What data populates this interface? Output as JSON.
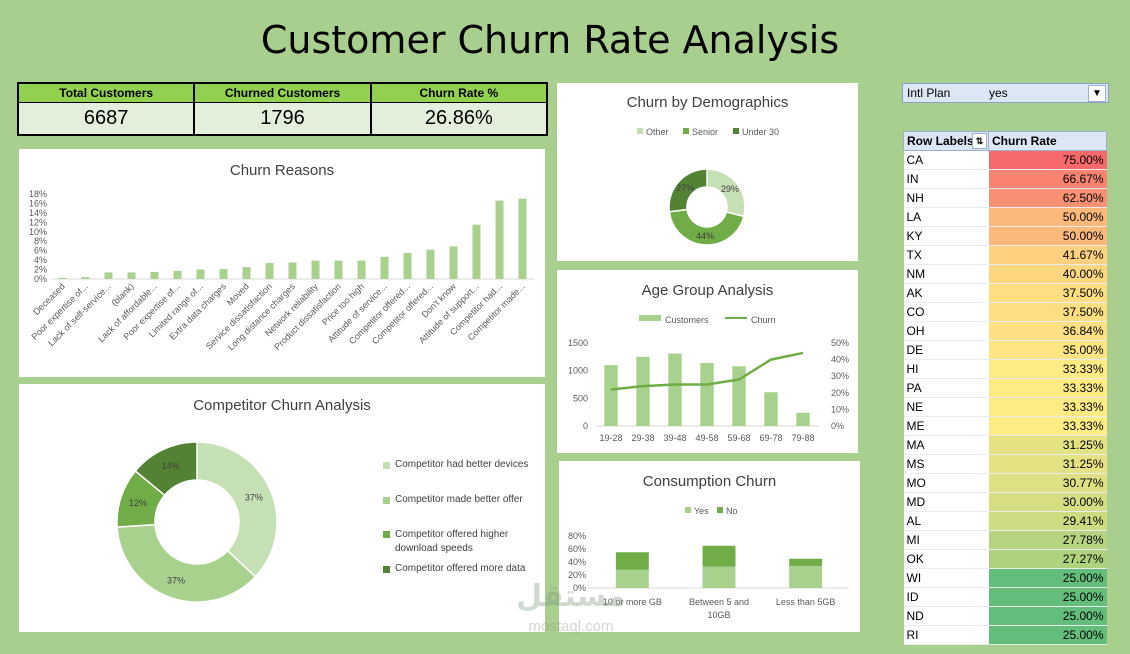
{
  "dashboard": {
    "title": "Customer Churn Rate Analysis"
  },
  "kpis": [
    {
      "label": "Total Customers",
      "value": "6687"
    },
    {
      "label": "Churned Customers",
      "value": "1796"
    },
    {
      "label": "Churn Rate %",
      "value": "26.86%"
    }
  ],
  "slicer": {
    "field": "Intl Plan",
    "value": "yes"
  },
  "pivot": {
    "header_label": "Row Labels",
    "header_value": "Churn Rate",
    "rows": [
      {
        "state": "CA",
        "rate": "75.00%",
        "color": "#f8696b"
      },
      {
        "state": "IN",
        "rate": "66.67%",
        "color": "#f98370"
      },
      {
        "state": "NH",
        "rate": "62.50%",
        "color": "#fa9073"
      },
      {
        "state": "LA",
        "rate": "50.00%",
        "color": "#fcb77a"
      },
      {
        "state": "KY",
        "rate": "50.00%",
        "color": "#fcb77a"
      },
      {
        "state": "TX",
        "rate": "41.67%",
        "color": "#fdd17f"
      },
      {
        "state": "NM",
        "rate": "40.00%",
        "color": "#fed680"
      },
      {
        "state": "AK",
        "rate": "37.50%",
        "color": "#fede81"
      },
      {
        "state": "CO",
        "rate": "37.50%",
        "color": "#fede81"
      },
      {
        "state": "OH",
        "rate": "36.84%",
        "color": "#fee082"
      },
      {
        "state": "DE",
        "rate": "35.00%",
        "color": "#ffe583"
      },
      {
        "state": "HI",
        "rate": "33.33%",
        "color": "#ffeb84"
      },
      {
        "state": "PA",
        "rate": "33.33%",
        "color": "#ffeb84"
      },
      {
        "state": "NE",
        "rate": "33.33%",
        "color": "#ffeb84"
      },
      {
        "state": "ME",
        "rate": "33.33%",
        "color": "#ffeb84"
      },
      {
        "state": "MA",
        "rate": "31.25%",
        "color": "#e5e283"
      },
      {
        "state": "MS",
        "rate": "31.25%",
        "color": "#e5e283"
      },
      {
        "state": "MO",
        "rate": "30.77%",
        "color": "#dfe083"
      },
      {
        "state": "MD",
        "rate": "30.00%",
        "color": "#d6dd82"
      },
      {
        "state": "AL",
        "rate": "29.41%",
        "color": "#cedb81"
      },
      {
        "state": "MI",
        "rate": "27.78%",
        "color": "#b6d47f"
      },
      {
        "state": "OK",
        "rate": "27.27%",
        "color": "#afd27e"
      },
      {
        "state": "WI",
        "rate": "25.00%",
        "color": "#63be7b"
      },
      {
        "state": "ID",
        "rate": "25.00%",
        "color": "#63be7b"
      },
      {
        "state": "ND",
        "rate": "25.00%",
        "color": "#63be7b"
      },
      {
        "state": "RI",
        "rate": "25.00%",
        "color": "#63be7b"
      }
    ]
  },
  "watermark": {
    "line1": "مستقل",
    "line2": "mostaql.com"
  },
  "colors": {
    "bar": "#a9d18e",
    "dark": "#548235",
    "mid": "#70ad47",
    "light": "#c5e0b4"
  },
  "chart_data": [
    {
      "id": "churn_reasons",
      "type": "bar",
      "title": "Churn Reasons",
      "ylim": [
        0,
        0.18
      ],
      "yticks": [
        "0%",
        "2%",
        "4%",
        "6%",
        "8%",
        "10%",
        "12%",
        "14%",
        "16%",
        "18%"
      ],
      "categories": [
        "Deceased",
        "Poor expertise of...",
        "Lack of self-service...",
        "(blank)",
        "Lack of affordable...",
        "Poor expertise of...",
        "Limited range of...",
        "Extra data charges",
        "Moved",
        "Service dissatisfaction",
        "Long distance charges",
        "Network reliability",
        "Product dissatisfaction",
        "Price too high",
        "Attitude of service...",
        "Competitor offered...",
        "Competitor offered...",
        "Don't know",
        "Attitude of support...",
        "Competitor had...",
        "Competitor made..."
      ],
      "values": [
        0.002,
        0.004,
        0.014,
        0.014,
        0.015,
        0.017,
        0.02,
        0.021,
        0.025,
        0.034,
        0.035,
        0.039,
        0.039,
        0.039,
        0.047,
        0.055,
        0.062,
        0.069,
        0.115,
        0.166,
        0.17
      ]
    },
    {
      "id": "demographics",
      "type": "pie",
      "title": "Churn by Demographics",
      "legend": "top",
      "categories": [
        "Other",
        "Senior",
        "Under 30"
      ],
      "values": [
        0.29,
        0.44,
        0.27
      ],
      "labels": [
        "29%",
        "44%",
        "27%"
      ],
      "colors": [
        "#c5e0b4",
        "#70ad47",
        "#548235"
      ]
    },
    {
      "id": "age_group",
      "type": "bar",
      "title": "Age Group Analysis",
      "legend": "top",
      "categories": [
        "19-28",
        "29-38",
        "39-48",
        "49-58",
        "59-68",
        "69-78",
        "79-88"
      ],
      "yticks_left": [
        "0",
        "500",
        "1000",
        "1500"
      ],
      "yticks_right": [
        "0%",
        "10%",
        "20%",
        "30%",
        "40%",
        "50%"
      ],
      "ylim": [
        0,
        1500
      ],
      "ylim_right": [
        0,
        0.5
      ],
      "series": [
        {
          "name": "Customers",
          "type": "bar",
          "values": [
            1100,
            1250,
            1310,
            1140,
            1080,
            610,
            240
          ]
        },
        {
          "name": "Churn",
          "type": "line",
          "values": [
            0.22,
            0.24,
            0.25,
            0.25,
            0.28,
            0.4,
            0.44
          ]
        }
      ]
    },
    {
      "id": "consumption",
      "type": "bar",
      "title": "Consumption Churn",
      "legend": "top",
      "categories": [
        "10 or more GB",
        "Between 5 and 10GB",
        "Less than 5GB"
      ],
      "yticks": [
        "0%",
        "20%",
        "40%",
        "60%",
        "80%"
      ],
      "ylim": [
        0,
        0.8
      ],
      "series": [
        {
          "name": "Yes",
          "values": [
            0.28,
            0.33,
            0.34
          ]
        },
        {
          "name": "No",
          "values": [
            0.27,
            0.32,
            0.11
          ]
        }
      ]
    },
    {
      "id": "competitor",
      "type": "pie",
      "title": "Competitor Churn Analysis",
      "legend": "right",
      "categories": [
        "Competitor had better devices",
        "Competitor made better offer",
        "Competitor offered higher download speeds",
        "Competitor offered more data"
      ],
      "values": [
        0.37,
        0.37,
        0.12,
        0.14
      ],
      "labels": [
        "37%",
        "37%",
        "12%",
        "14%"
      ],
      "colors": [
        "#c5e0b4",
        "#a9d18e",
        "#70ad47",
        "#548235"
      ]
    }
  ]
}
